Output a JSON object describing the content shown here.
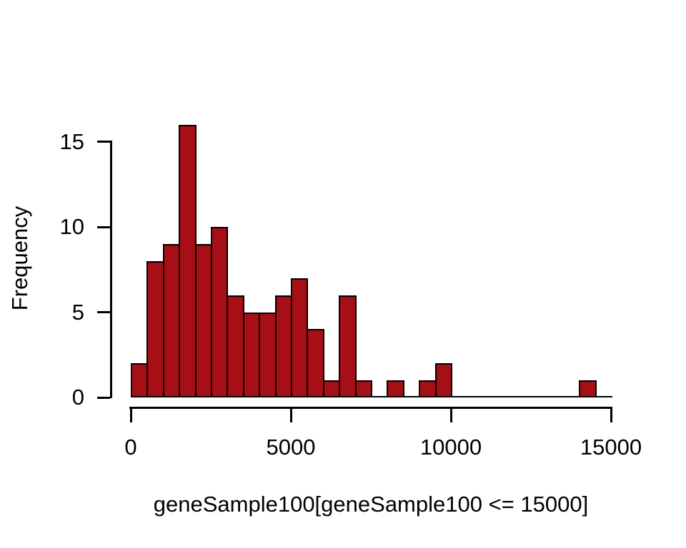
{
  "chart_data": {
    "type": "bar",
    "subtype": "histogram",
    "title": "",
    "xlabel": "geneSample100[geneSample100 <= 15000]",
    "ylabel": "Frequency",
    "xlim": [
      0,
      15000
    ],
    "ylim": [
      0,
      16
    ],
    "x_ticks": [
      0,
      5000,
      10000,
      15000
    ],
    "y_ticks": [
      0,
      5,
      10,
      15
    ],
    "bin_start": 0,
    "bin_width": 500,
    "counts": [
      2,
      8,
      9,
      16,
      9,
      10,
      6,
      5,
      5,
      6,
      7,
      4,
      1,
      6,
      1,
      0,
      1,
      0,
      1,
      2,
      0,
      0,
      0,
      0,
      0,
      0,
      0,
      0,
      1,
      0
    ],
    "total_count": 100,
    "grid": false,
    "legend": "none",
    "colors": {
      "bar_fill": "#A50F15",
      "bar_border": "#000000",
      "axis": "#000000",
      "text": "#000000",
      "background": "#FFFFFF"
    }
  }
}
